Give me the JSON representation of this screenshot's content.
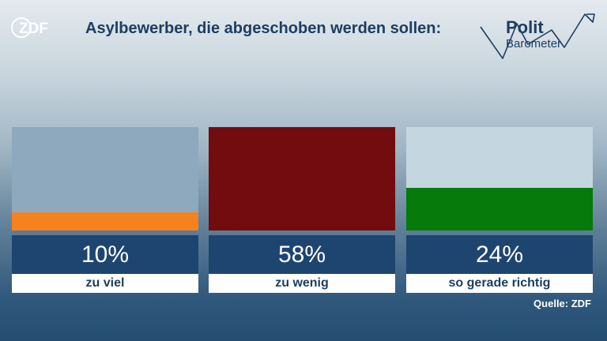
{
  "logo": {
    "text": "ZDF"
  },
  "title": "Asylbewerber, die abgeschoben werden sollen:",
  "brand": {
    "line1": "Polit",
    "line2": "Barometer"
  },
  "chart_data": {
    "type": "bar",
    "title": "Asylbewerber, die abgeschoben werden sollen:",
    "categories": [
      "zu viel",
      "zu wenig",
      "so gerade richtig"
    ],
    "values": [
      10,
      58,
      24
    ],
    "value_labels": [
      "10%",
      "58%",
      "24%"
    ],
    "unit": "%",
    "ylim": [
      0,
      58
    ],
    "colors": [
      "#f5821f",
      "#730c0e",
      "#067a0b"
    ],
    "track_colors": [
      "#8ea9bd",
      "#8ea9bd",
      "#c4d6df"
    ]
  },
  "source": "Quelle: ZDF"
}
